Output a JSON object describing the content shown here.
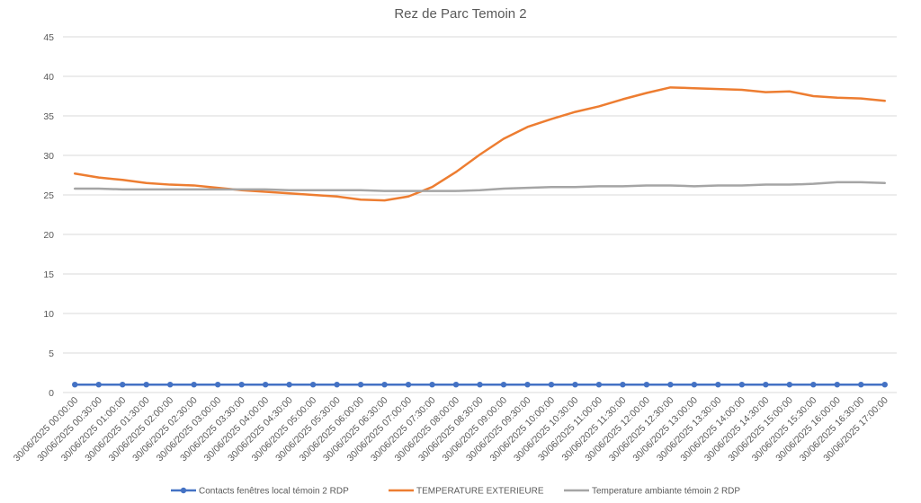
{
  "chart_data": {
    "type": "line",
    "title": "Rez de Parc Temoin 2",
    "xlabel": "",
    "ylabel": "",
    "ylim": [
      0,
      45
    ],
    "yticks": [
      0,
      5,
      10,
      15,
      20,
      25,
      30,
      35,
      40,
      45
    ],
    "grid": true,
    "legend_position": "bottom",
    "categories": [
      "30/06/2025 00:00:00",
      "30/06/2025 00:30:00",
      "30/06/2025 01:00:00",
      "30/06/2025 01:30:00",
      "30/06/2025 02:00:00",
      "30/06/2025 02:30:00",
      "30/06/2025 03:00:00",
      "30/06/2025 03:30:00",
      "30/06/2025 04:00:00",
      "30/06/2025 04:30:00",
      "30/06/2025 05:00:00",
      "30/06/2025 05:30:00",
      "30/06/2025 06:00:00",
      "30/06/2025 06:30:00",
      "30/06/2025 07:00:00",
      "30/06/2025 07:30:00",
      "30/06/2025 08:00:00",
      "30/06/2025 08:30:00",
      "30/06/2025 09:00:00",
      "30/06/2025 09:30:00",
      "30/06/2025 10:00:00",
      "30/06/2025 10:30:00",
      "30/06/2025 11:00:00",
      "30/06/2025 11:30:00",
      "30/06/2025 12:00:00",
      "30/06/2025 12:30:00",
      "30/06/2025 13:00:00",
      "30/06/2025 13:30:00",
      "30/06/2025 14:00:00",
      "30/06/2025 14:30:00",
      "30/06/2025 15:00:00",
      "30/06/2025 15:30:00",
      "30/06/2025 16:00:00",
      "30/06/2025 16:30:00",
      "30/06/2025 17:00:00"
    ],
    "series": [
      {
        "name": "Contacts fenêtres local témoin 2 RDP",
        "color": "#4472c4",
        "markers": true,
        "values": [
          1,
          1,
          1,
          1,
          1,
          1,
          1,
          1,
          1,
          1,
          1,
          1,
          1,
          1,
          1,
          1,
          1,
          1,
          1,
          1,
          1,
          1,
          1,
          1,
          1,
          1,
          1,
          1,
          1,
          1,
          1,
          1,
          1,
          1,
          1
        ]
      },
      {
        "name": "TEMPERATURE EXTERIEURE",
        "color": "#ed7d31",
        "markers": false,
        "values": [
          27.7,
          27.2,
          26.9,
          26.5,
          26.3,
          26.2,
          25.9,
          25.6,
          25.4,
          25.2,
          25.0,
          24.8,
          24.4,
          24.3,
          24.8,
          26.0,
          27.9,
          30.1,
          32.1,
          33.6,
          34.6,
          35.5,
          36.2,
          37.1,
          37.9,
          38.6,
          38.5,
          38.4,
          38.3,
          38.0,
          38.1,
          37.5,
          37.3,
          37.2,
          36.9
        ]
      },
      {
        "name": "Temperature ambiante témoin 2 RDP",
        "color": "#a5a5a5",
        "markers": false,
        "values": [
          25.8,
          25.8,
          25.7,
          25.7,
          25.7,
          25.7,
          25.7,
          25.7,
          25.7,
          25.6,
          25.6,
          25.6,
          25.6,
          25.5,
          25.5,
          25.5,
          25.5,
          25.6,
          25.8,
          25.9,
          26.0,
          26.0,
          26.1,
          26.1,
          26.2,
          26.2,
          26.1,
          26.2,
          26.2,
          26.3,
          26.3,
          26.4,
          26.6,
          26.6,
          26.5
        ]
      }
    ]
  }
}
